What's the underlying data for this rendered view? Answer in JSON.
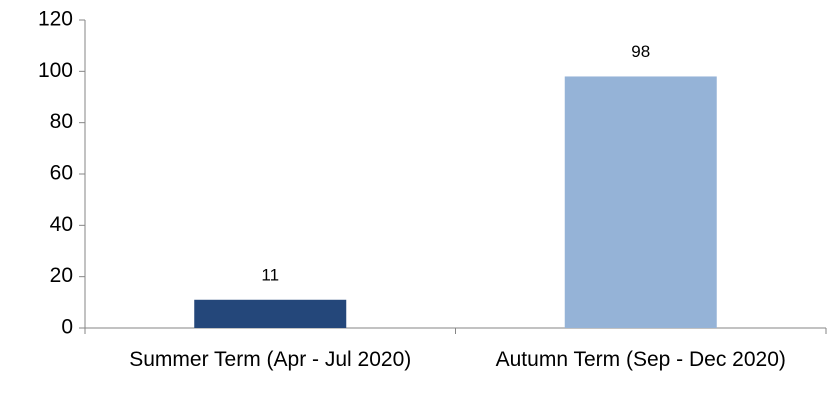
{
  "chart_data": {
    "type": "bar",
    "categories": [
      "Summer Term (Apr - Jul 2020)",
      "Autumn Term (Sep - Dec 2020)"
    ],
    "values": [
      11,
      98
    ],
    "colors": [
      "#24477a",
      "#95b3d7"
    ],
    "ylim": [
      0,
      120
    ],
    "yticks": [
      0,
      20,
      40,
      60,
      80,
      100,
      120
    ],
    "grid": false
  }
}
